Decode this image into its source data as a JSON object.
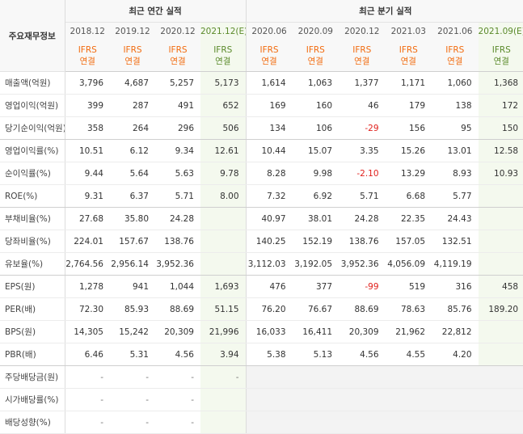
{
  "table": {
    "row_header": "주요재무정보",
    "groups": [
      "최근 연간 실적",
      "최근 분기 실적"
    ],
    "columns": [
      {
        "period": "2018.12",
        "basis": [
          "IFRS",
          "연결"
        ]
      },
      {
        "period": "2019.12",
        "basis": [
          "IFRS",
          "연결"
        ]
      },
      {
        "period": "2020.12",
        "basis": [
          "IFRS",
          "연결"
        ]
      },
      {
        "period": "2021.12",
        "estimate": "(E)",
        "basis": [
          "IFRS",
          "연결"
        ]
      },
      {
        "period": "2020.06",
        "basis": [
          "IFRS",
          "연결"
        ]
      },
      {
        "period": "2020.09",
        "basis": [
          "IFRS",
          "연결"
        ]
      },
      {
        "period": "2020.12",
        "basis": [
          "IFRS",
          "연결"
        ]
      },
      {
        "period": "2021.03",
        "basis": [
          "IFRS",
          "연결"
        ]
      },
      {
        "period": "2021.06",
        "basis": [
          "IFRS",
          "연결"
        ]
      },
      {
        "period": "2021.09",
        "estimate": "(E)",
        "basis": [
          "IFRS",
          "연결"
        ]
      }
    ],
    "rows": [
      {
        "label": "매출액(억원)",
        "values": [
          "3,796",
          "4,687",
          "5,257",
          "5,173",
          "1,614",
          "1,063",
          "1,377",
          "1,171",
          "1,060",
          "1,368"
        ]
      },
      {
        "label": "영업이익(억원)",
        "values": [
          "399",
          "287",
          "491",
          "652",
          "169",
          "160",
          "46",
          "179",
          "138",
          "172"
        ]
      },
      {
        "label": "당기순이익(억원)",
        "values": [
          "358",
          "264",
          "296",
          "506",
          "134",
          "106",
          "-29",
          "156",
          "95",
          "150"
        ]
      },
      {
        "label": "영업이익률(%)",
        "values": [
          "10.51",
          "6.12",
          "9.34",
          "12.61",
          "10.44",
          "15.07",
          "3.35",
          "15.26",
          "13.01",
          "12.58"
        ]
      },
      {
        "label": "순이익률(%)",
        "values": [
          "9.44",
          "5.64",
          "5.63",
          "9.78",
          "8.28",
          "9.98",
          "-2.10",
          "13.29",
          "8.93",
          "10.93"
        ]
      },
      {
        "label": "ROE(%)",
        "values": [
          "9.31",
          "6.37",
          "5.71",
          "8.00",
          "7.32",
          "6.92",
          "5.71",
          "6.68",
          "5.77",
          null
        ]
      },
      {
        "label": "부채비율(%)",
        "values": [
          "27.68",
          "35.80",
          "24.28",
          null,
          "40.97",
          "38.01",
          "24.28",
          "22.35",
          "24.43",
          null
        ]
      },
      {
        "label": "당좌비율(%)",
        "values": [
          "224.01",
          "157.67",
          "138.76",
          null,
          "140.25",
          "152.19",
          "138.76",
          "157.05",
          "132.51",
          null
        ]
      },
      {
        "label": "유보율(%)",
        "values": [
          "2,764.56",
          "2,956.14",
          "3,952.36",
          null,
          "3,112.03",
          "3,192.05",
          "3,952.36",
          "4,056.09",
          "4,119.19",
          null
        ]
      },
      {
        "label": "EPS(원)",
        "values": [
          "1,278",
          "941",
          "1,044",
          "1,693",
          "476",
          "377",
          "-99",
          "519",
          "316",
          "458"
        ]
      },
      {
        "label": "PER(배)",
        "values": [
          "72.30",
          "85.93",
          "88.69",
          "51.15",
          "76.20",
          "76.67",
          "88.69",
          "78.63",
          "85.76",
          "189.20"
        ]
      },
      {
        "label": "BPS(원)",
        "values": [
          "14,305",
          "15,242",
          "20,309",
          "21,996",
          "16,033",
          "16,411",
          "20,309",
          "21,962",
          "22,812",
          null
        ]
      },
      {
        "label": "PBR(배)",
        "values": [
          "6.46",
          "5.31",
          "4.56",
          "3.94",
          "5.38",
          "5.13",
          "4.56",
          "4.55",
          "4.20",
          null
        ]
      },
      {
        "label": "주당배당금(원)",
        "values": [
          "-",
          "-",
          "-",
          "-",
          null,
          null,
          null,
          null,
          null,
          null
        ]
      },
      {
        "label": "시가배당률(%)",
        "values": [
          "-",
          "-",
          "-",
          null,
          null,
          null,
          null,
          null,
          null,
          null
        ]
      },
      {
        "label": "배당성향(%)",
        "values": [
          "-",
          "-",
          "-",
          null,
          null,
          null,
          null,
          null,
          null,
          null
        ]
      }
    ]
  }
}
